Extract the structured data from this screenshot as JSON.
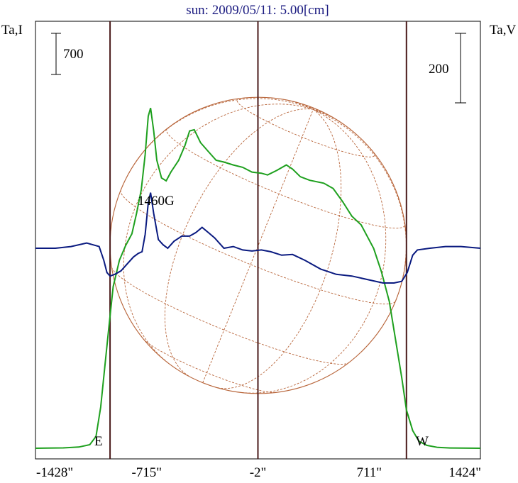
{
  "header": {
    "title": "sun: 2009/05/11: 5.00[cm]",
    "left_axis_label": "Ta,I",
    "right_axis_label": "Ta,V"
  },
  "scale_bars": {
    "left_label": "700",
    "right_label": "200"
  },
  "annotations": {
    "field_label": "1460G",
    "east": "E",
    "west": "W"
  },
  "colors": {
    "background": "#ffffff",
    "title": "#1a1a80",
    "intensity_curve": "#1ea01e",
    "polarization_curve": "#0a1a80",
    "disk": "#b8653a",
    "vertical_lines": "#4a1a1a",
    "text": "#000000"
  },
  "chart_data": {
    "type": "line",
    "title": "sun: 2009/05/11: 5.00[cm]",
    "x_unit": "arcsec",
    "xlim": [
      -1428,
      1424
    ],
    "x_tick_labels": [
      "-1428\"",
      "-715\"",
      "-2\"",
      "711\"",
      "1424\""
    ],
    "x_ticks": [
      -1428,
      -715,
      -2,
      711,
      1424
    ],
    "vertical_lines": [
      -950,
      -2,
      950
    ],
    "limb_labels": [
      "E",
      "W"
    ],
    "solar_disk_radius": 950,
    "series": [
      {
        "name": "Ta,I",
        "color": "#1ea01e",
        "points": [
          [
            -1428,
            0
          ],
          [
            -1350,
            2
          ],
          [
            -1250,
            6
          ],
          [
            -1150,
            20
          ],
          [
            -1080,
            60
          ],
          [
            -1040,
            200
          ],
          [
            -1010,
            700
          ],
          [
            -985,
            1350
          ],
          [
            -960,
            2000
          ],
          [
            -930,
            2750
          ],
          [
            -890,
            3200
          ],
          [
            -850,
            3450
          ],
          [
            -810,
            3650
          ],
          [
            -780,
            4000
          ],
          [
            -750,
            4400
          ],
          [
            -725,
            5000
          ],
          [
            -705,
            5650
          ],
          [
            -690,
            5790
          ],
          [
            -670,
            5400
          ],
          [
            -650,
            4900
          ],
          [
            -620,
            4600
          ],
          [
            -590,
            4550
          ],
          [
            -560,
            4700
          ],
          [
            -510,
            4900
          ],
          [
            -470,
            5150
          ],
          [
            -440,
            5400
          ],
          [
            -410,
            5420
          ],
          [
            -370,
            5200
          ],
          [
            -320,
            5050
          ],
          [
            -270,
            4900
          ],
          [
            -220,
            4870
          ],
          [
            -160,
            4820
          ],
          [
            -100,
            4780
          ],
          [
            -40,
            4700
          ],
          [
            20,
            4680
          ],
          [
            60,
            4650
          ],
          [
            120,
            4730
          ],
          [
            180,
            4820
          ],
          [
            220,
            4750
          ],
          [
            270,
            4620
          ],
          [
            330,
            4560
          ],
          [
            420,
            4510
          ],
          [
            480,
            4420
          ],
          [
            540,
            4200
          ],
          [
            600,
            3950
          ],
          [
            660,
            3800
          ],
          [
            700,
            3600
          ],
          [
            740,
            3400
          ],
          [
            790,
            3000
          ],
          [
            840,
            2500
          ],
          [
            880,
            1850
          ],
          [
            920,
            1200
          ],
          [
            950,
            650
          ],
          [
            990,
            300
          ],
          [
            1030,
            120
          ],
          [
            1080,
            50
          ],
          [
            1150,
            15
          ],
          [
            1230,
            5
          ],
          [
            1300,
            2
          ],
          [
            1424,
            0
          ]
        ]
      },
      {
        "name": "Ta,V",
        "color": "#0a1a80",
        "points": [
          [
            -1428,
            0
          ],
          [
            -1400,
            0
          ],
          [
            -1300,
            0
          ],
          [
            -1200,
            5
          ],
          [
            -1100,
            15
          ],
          [
            -1020,
            5
          ],
          [
            -990,
            -35
          ],
          [
            -970,
            -70
          ],
          [
            -950,
            -80
          ],
          [
            -920,
            -75
          ],
          [
            -880,
            -65
          ],
          [
            -840,
            -45
          ],
          [
            -800,
            -25
          ],
          [
            -770,
            -15
          ],
          [
            -745,
            -10
          ],
          [
            -725,
            40
          ],
          [
            -705,
            130
          ],
          [
            -690,
            160
          ],
          [
            -670,
            100
          ],
          [
            -640,
            25
          ],
          [
            -610,
            10
          ],
          [
            -580,
            0
          ],
          [
            -540,
            20
          ],
          [
            -490,
            35
          ],
          [
            -440,
            35
          ],
          [
            -400,
            45
          ],
          [
            -360,
            60
          ],
          [
            -320,
            45
          ],
          [
            -280,
            30
          ],
          [
            -220,
            0
          ],
          [
            -160,
            5
          ],
          [
            -100,
            -5
          ],
          [
            -40,
            -8
          ],
          [
            20,
            -5
          ],
          [
            80,
            -10
          ],
          [
            150,
            -20
          ],
          [
            220,
            -18
          ],
          [
            300,
            -35
          ],
          [
            400,
            -60
          ],
          [
            500,
            -75
          ],
          [
            600,
            -80
          ],
          [
            700,
            -90
          ],
          [
            800,
            -100
          ],
          [
            870,
            -100
          ],
          [
            920,
            -95
          ],
          [
            955,
            -70
          ],
          [
            990,
            -20
          ],
          [
            1020,
            -5
          ],
          [
            1100,
            0
          ],
          [
            1200,
            5
          ],
          [
            1300,
            5
          ],
          [
            1424,
            0
          ]
        ]
      }
    ],
    "scale_bar_left": 700,
    "scale_bar_right": 200,
    "grid": false
  }
}
